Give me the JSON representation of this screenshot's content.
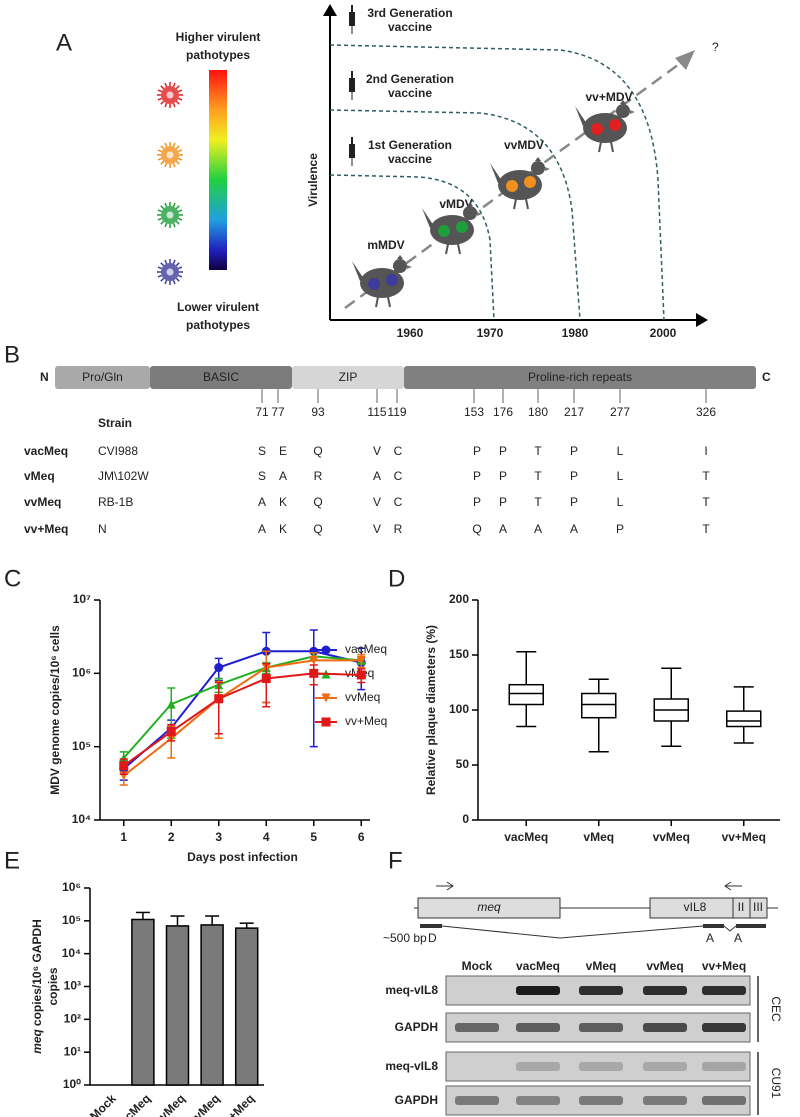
{
  "panel_a": {
    "letter": "A",
    "legend_top": [
      "Higher virulent",
      "pathotypes"
    ],
    "legend_bottom": [
      "Lower virulent",
      "pathotypes"
    ],
    "y_axis_label": "Virulence",
    "years": [
      "1960",
      "1970",
      "1980",
      "2000"
    ],
    "question": "?",
    "vaccines": [
      [
        "1st Generation",
        "vaccine"
      ],
      [
        "2nd Generation",
        "vaccine"
      ],
      [
        "3rd Generation",
        "vaccine"
      ]
    ],
    "pathotypes": [
      {
        "label": "mMDV",
        "color": "#3c3c9c"
      },
      {
        "label": "vMDV",
        "color": "#1f9e3c"
      },
      {
        "label": "vvMDV",
        "color": "#f0901e"
      },
      {
        "label": "vv+MDV",
        "color": "#e02020"
      }
    ]
  },
  "panel_b": {
    "letter": "B",
    "n_term": "N",
    "c_term": "C",
    "strain_header": "Strain",
    "domains": [
      {
        "name": "Pro/Gln",
        "color": "#a9a9a9"
      },
      {
        "name": "BASIC",
        "color": "#7c7c7c"
      },
      {
        "name": "ZIP",
        "color": "#d6d6d6"
      },
      {
        "name": "Proline-rich repeats",
        "color": "#808080"
      }
    ],
    "positions": [
      "71",
      "77",
      "93",
      "115",
      "119",
      "153",
      "176",
      "180",
      "217",
      "277",
      "326"
    ],
    "rows": [
      {
        "name": "vacMeq",
        "strain": "CVI988",
        "residues": [
          {
            "aa": "S",
            "color": "#333333"
          },
          {
            "aa": "E",
            "color": "#3c3c9c"
          },
          {
            "aa": "Q",
            "color": "#333333"
          },
          {
            "aa": "V",
            "color": "#333333"
          },
          {
            "aa": "C",
            "color": "#333333"
          },
          {
            "aa": "P",
            "color": "#333333"
          },
          {
            "aa": "P",
            "color": "#333333"
          },
          {
            "aa": "T",
            "color": "#333333"
          },
          {
            "aa": "P",
            "color": "#333333"
          },
          {
            "aa": "L",
            "color": "#333333"
          },
          {
            "aa": "I",
            "color": "#333333"
          }
        ]
      },
      {
        "name": "vMeq",
        "strain": "JM\\102W",
        "residues": [
          {
            "aa": "S",
            "color": "#333333"
          },
          {
            "aa": "A",
            "color": "#1f9e3c"
          },
          {
            "aa": "R",
            "color": "#1f9e3c"
          },
          {
            "aa": "A",
            "color": "#1f9e3c"
          },
          {
            "aa": "C",
            "color": "#333333"
          },
          {
            "aa": "P",
            "color": "#333333"
          },
          {
            "aa": "P",
            "color": "#333333"
          },
          {
            "aa": "T",
            "color": "#333333"
          },
          {
            "aa": "P",
            "color": "#333333"
          },
          {
            "aa": "L",
            "color": "#333333"
          },
          {
            "aa": "T",
            "color": "#333333"
          }
        ]
      },
      {
        "name": "vvMeq",
        "strain": "RB-1B",
        "residues": [
          {
            "aa": "A",
            "color": "#f0901e"
          },
          {
            "aa": "K",
            "color": "#f0901e"
          },
          {
            "aa": "Q",
            "color": "#333333"
          },
          {
            "aa": "V",
            "color": "#f0901e"
          },
          {
            "aa": "C",
            "color": "#333333"
          },
          {
            "aa": "P",
            "color": "#333333"
          },
          {
            "aa": "P",
            "color": "#333333"
          },
          {
            "aa": "T",
            "color": "#333333"
          },
          {
            "aa": "P",
            "color": "#333333"
          },
          {
            "aa": "L",
            "color": "#333333"
          },
          {
            "aa": "T",
            "color": "#333333"
          }
        ]
      },
      {
        "name": "vv+Meq",
        "strain": "N",
        "residues": [
          {
            "aa": "A",
            "color": "#333333"
          },
          {
            "aa": "K",
            "color": "#333333"
          },
          {
            "aa": "Q",
            "color": "#333333"
          },
          {
            "aa": "V",
            "color": "#333333"
          },
          {
            "aa": "R",
            "color": "#333333"
          },
          {
            "aa": "Q",
            "color": "#e02020"
          },
          {
            "aa": "A",
            "color": "#e02020"
          },
          {
            "aa": "A",
            "color": "#e02020"
          },
          {
            "aa": "A",
            "color": "#e02020"
          },
          {
            "aa": "P",
            "color": "#e02020"
          },
          {
            "aa": "T",
            "color": "#333333"
          }
        ]
      }
    ]
  },
  "chart_data": [
    {
      "type": "line",
      "panel_label": "C",
      "log": true,
      "x_label": "Days post infection",
      "y_label": "MDV genome copies/10⁶ cells",
      "x": [
        1,
        2,
        3,
        4,
        5,
        6
      ],
      "xlim": [
        0.5,
        6.5
      ],
      "xticks": [
        1,
        2,
        3,
        4,
        5,
        6
      ],
      "ylim": [
        10000,
        10000000
      ],
      "yticks": [
        {
          "value": 10000,
          "label": "10⁴"
        },
        {
          "value": 100000,
          "label": "10⁵"
        },
        {
          "value": 1000000,
          "label": "10⁶"
        },
        {
          "value": 10000000,
          "label": "10⁷"
        }
      ],
      "legend": "right",
      "series": [
        {
          "name": "vacMeq",
          "color": "#1f1fd0",
          "marker": "circle",
          "values": [
            50000,
            180000,
            1200000,
            2000000,
            2000000,
            1400000
          ],
          "errors": [
            15000,
            50000,
            400000,
            1600000,
            1900000,
            800000
          ]
        },
        {
          "name": "vMeq",
          "color": "#22b022",
          "marker": "triangle-up",
          "values": [
            70000,
            380000,
            700000,
            1200000,
            1700000,
            1500000
          ],
          "errors": [
            15000,
            250000,
            150000,
            200000,
            200000,
            100000
          ]
        },
        {
          "name": "vvMeq",
          "color": "#f06a10",
          "marker": "triangle-down",
          "values": [
            40000,
            130000,
            450000,
            1200000,
            1500000,
            1500000
          ],
          "errors": [
            10000,
            60000,
            320000,
            800000,
            400000,
            300000
          ]
        },
        {
          "name": "vv+Meq",
          "color": "#e01818",
          "marker": "square",
          "values": [
            55000,
            160000,
            450000,
            850000,
            1000000,
            950000
          ],
          "errors": [
            13000,
            40000,
            300000,
            500000,
            300000,
            200000
          ]
        }
      ]
    },
    {
      "type": "box",
      "panel_label": "D",
      "y_label": "Relative plaque diameters (%)",
      "categories": [
        "vacMeq",
        "vMeq",
        "vvMeq",
        "vv+Meq"
      ],
      "ylim": [
        0,
        200
      ],
      "yticks": [
        0,
        50,
        100,
        150,
        200
      ],
      "color": "#000000",
      "min": [
        85,
        62,
        67,
        70
      ],
      "q1": [
        105,
        93,
        90,
        85
      ],
      "median": [
        115,
        105,
        100,
        90
      ],
      "q3": [
        123,
        115,
        110,
        99
      ],
      "max": [
        153,
        128,
        138,
        121
      ]
    },
    {
      "type": "bar",
      "panel_label": "E",
      "log": true,
      "y_label_italic": "meq",
      "y_label": [
        "copies/10⁶ GAPDH",
        "copies"
      ],
      "categories": [
        "Mock",
        "vacMeq",
        "vMeq",
        "vvMeq",
        "vv+Meq"
      ],
      "values": [
        null,
        110000,
        70000,
        75000,
        60000
      ],
      "errors": [
        null,
        70000,
        70000,
        65000,
        25000
      ],
      "color": "#7a7a7a",
      "ylim": [
        1,
        1000000
      ],
      "yticks": [
        {
          "value": 1,
          "label": "10⁰"
        },
        {
          "value": 10,
          "label": "10¹"
        },
        {
          "value": 100,
          "label": "10²"
        },
        {
          "value": 1000,
          "label": "10³"
        },
        {
          "value": 10000,
          "label": "10⁴"
        },
        {
          "value": 100000,
          "label": "10⁵"
        },
        {
          "value": 1000000,
          "label": "10⁶"
        }
      ]
    }
  ],
  "panel_f": {
    "letter": "F",
    "gene_meq": "meq",
    "gene_vil8": "vIL8",
    "exons": [
      "II",
      "III"
    ],
    "size": "~500 bp",
    "donor": "D",
    "acceptors": [
      "A",
      "A"
    ],
    "lanes": [
      "Mock",
      "vacMeq",
      "vMeq",
      "vvMeq",
      "vv+Meq"
    ],
    "rows": [
      "meq-vIL8",
      "GAPDH",
      "meq-vIL8",
      "GAPDH"
    ],
    "cells": [
      "CEC",
      "CU91"
    ]
  }
}
